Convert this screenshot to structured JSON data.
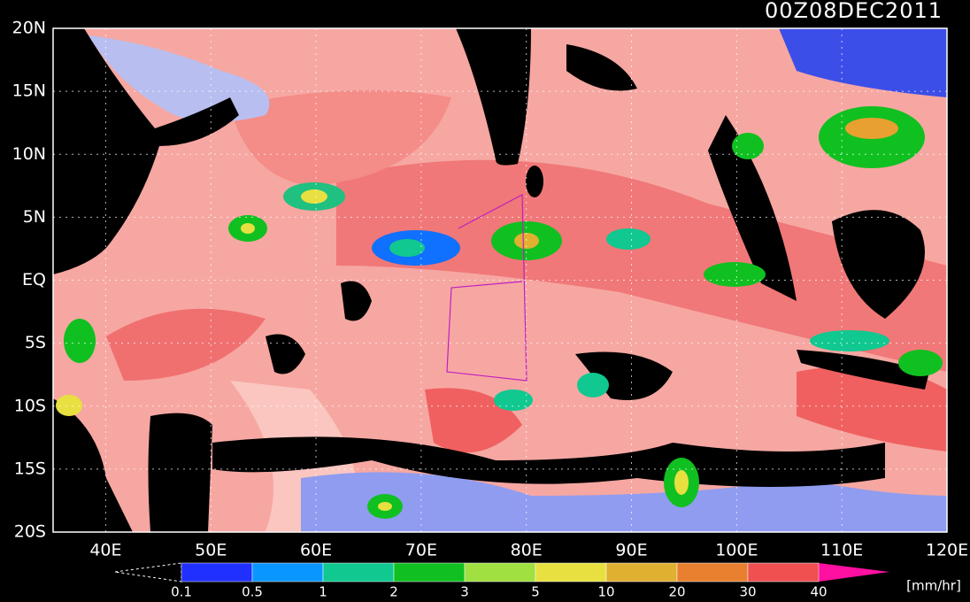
{
  "header": {
    "title": "00Z08DEC2011"
  },
  "map": {
    "lat_labels": [
      "20N",
      "15N",
      "10N",
      "5N",
      "EQ",
      "5S",
      "10S",
      "15S",
      "20S"
    ],
    "lon_labels": [
      "40E",
      "50E",
      "60E",
      "70E",
      "80E",
      "90E",
      "100E",
      "110E",
      "120E"
    ]
  },
  "colorbar": {
    "labels": [
      "0.1",
      "0.5",
      "1",
      "2",
      "3",
      "5",
      "10",
      "20",
      "30",
      "40"
    ],
    "unit": "[mm/hr]"
  }
}
